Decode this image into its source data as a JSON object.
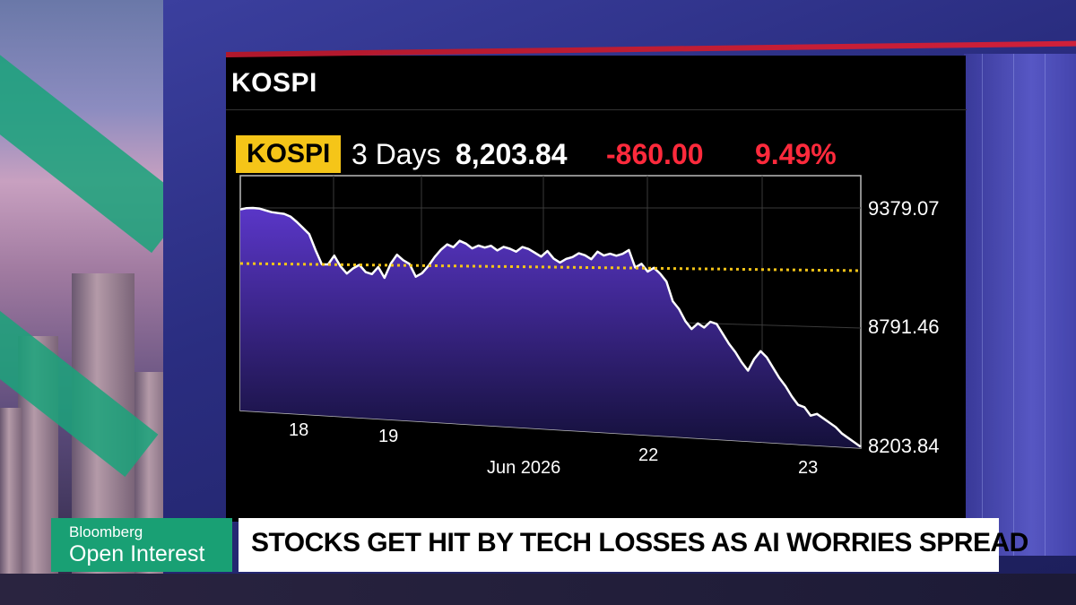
{
  "panel": {
    "title": "KOSPI"
  },
  "header": {
    "ticker": "KOSPI",
    "period": "3 Days",
    "last": "8,203.84",
    "change": "-860.00",
    "change_pct": "9.49%"
  },
  "lower_third": {
    "brand": "Bloomberg",
    "show": "Open Interest",
    "headline": "STOCKS GET HIT BY TECH LOSSES AS AI WORRIES SPREAD"
  },
  "chart_data": {
    "type": "area",
    "title": "",
    "xlabel": "",
    "ylabel": "",
    "x_tick_labels": [
      "18",
      "19",
      "22",
      "23"
    ],
    "x_month_label": "Jun 2026",
    "y_tick_labels": [
      "9379.07",
      "8791.46",
      "8203.84"
    ],
    "ylim": [
      8203.84,
      9379.07
    ],
    "reference_line": {
      "style": "dotted",
      "color": "#f5c518",
      "value": 9100
    },
    "series": [
      {
        "color": "#ffffff",
        "fill": "#4a2ab0",
        "values": [
          9370,
          9378,
          9379,
          9376,
          9365,
          9355,
          9350,
          9345,
          9330,
          9300,
          9265,
          9230,
          9140,
          9060,
          9060,
          9110,
          9050,
          9010,
          9040,
          9060,
          9020,
          9010,
          9050,
          8990,
          9070,
          9120,
          9090,
          9070,
          9000,
          9020,
          9060,
          9110,
          9150,
          9180,
          9165,
          9200,
          9185,
          9160,
          9175,
          9165,
          9175,
          9150,
          9170,
          9160,
          9145,
          9170,
          9160,
          9140,
          9120,
          9150,
          9110,
          9090,
          9110,
          9120,
          9140,
          9130,
          9110,
          9150,
          9130,
          9140,
          9130,
          9140,
          9160,
          9070,
          9090,
          9050,
          9070,
          9040,
          9000,
          8900,
          8860,
          8800,
          8760,
          8790,
          8770,
          8800,
          8790,
          8740,
          8690,
          8650,
          8600,
          8560,
          8620,
          8660,
          8630,
          8580,
          8530,
          8490,
          8440,
          8400,
          8390,
          8350,
          8360,
          8340,
          8320,
          8300,
          8270,
          8250,
          8230,
          8210
        ]
      }
    ],
    "legend": "none",
    "grid": true
  }
}
